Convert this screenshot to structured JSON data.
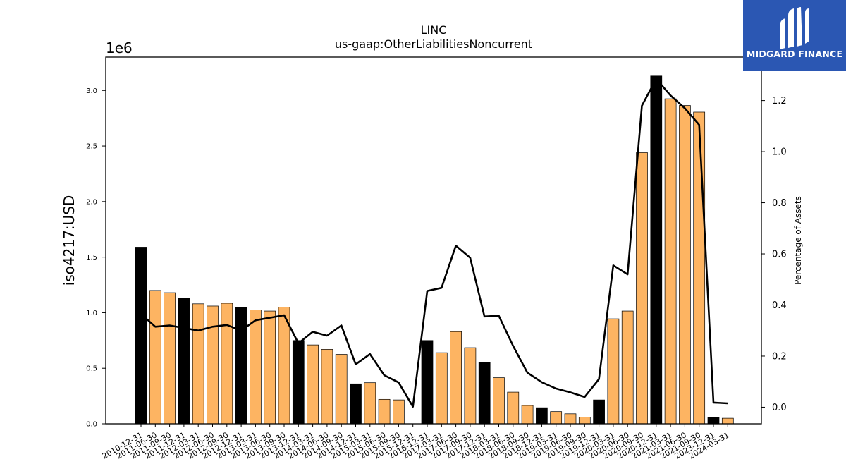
{
  "header": {
    "title": "LINC",
    "subtitle": "us-gaap:OtherLiabilitiesNoncurrent"
  },
  "logo": {
    "text": "MIDGARD FINANCE",
    "background": "#2b57b3"
  },
  "colors": {
    "bar_regular": "#fdb462",
    "bar_highlight": "#000000",
    "line": "#000000"
  },
  "chart_data": {
    "type": "bar",
    "ylabel": "iso4217:USD",
    "y_offset_label": "1e6",
    "y2label": "Percentage of Assets",
    "ylim": [
      0,
      3300000
    ],
    "y2lim": [
      -0.065,
      1.37
    ],
    "yticks": [
      "0.0",
      "0.5",
      "1.0",
      "1.5",
      "2.0",
      "2.5",
      "3.0"
    ],
    "y2ticks": [
      "0.0",
      "0.2",
      "0.4",
      "0.6",
      "0.8",
      "1.0",
      "1.2"
    ],
    "grid": false,
    "categories": [
      "2010-12-31",
      "2011-06-30",
      "2011-09-30",
      "2011-12-31",
      "2012-03-31",
      "2012-06-30",
      "2012-09-30",
      "2012-12-31",
      "2013-03-31",
      "2013-06-30",
      "2013-09-30",
      "2013-12-31",
      "2014-03-31",
      "2014-06-30",
      "2014-09-30",
      "2014-12-31",
      "2015-03-31",
      "2015-06-30",
      "2015-09-30",
      "2015-12-31",
      "2016-12-31",
      "2017-03-31",
      "2017-06-30",
      "2017-09-30",
      "2017-12-31",
      "2018-03-31",
      "2018-06-30",
      "2018-09-30",
      "2018-12-31",
      "2019-03-31",
      "2019-06-30",
      "2019-09-30",
      "2019-12-31",
      "2020-03-31",
      "2020-06-30",
      "2020-09-30",
      "2020-12-31",
      "2021-03-31",
      "2021-06-30",
      "2021-09-30",
      "2023-12-31",
      "2024-03-31"
    ],
    "series": [
      {
        "type": "bar",
        "values": [
          1590000,
          1200000,
          1180000,
          1130000,
          1080000,
          1060000,
          1085000,
          1045000,
          1025000,
          1015000,
          1050000,
          750000,
          710000,
          670000,
          625000,
          360000,
          370000,
          220000,
          215000,
          0,
          750000,
          640000,
          830000,
          685000,
          550000,
          415000,
          285000,
          165000,
          145000,
          110000,
          90000,
          60000,
          215000,
          945000,
          1015000,
          2440000,
          3130000,
          2925000,
          2865000,
          2805000,
          55000,
          50000
        ],
        "highlight": [
          true,
          false,
          false,
          true,
          false,
          false,
          false,
          true,
          false,
          false,
          false,
          true,
          false,
          false,
          false,
          true,
          false,
          false,
          false,
          false,
          true,
          false,
          false,
          false,
          true,
          false,
          false,
          false,
          true,
          false,
          false,
          false,
          true,
          false,
          false,
          false,
          true,
          false,
          false,
          false,
          true,
          false
        ]
      },
      {
        "type": "line",
        "axis": "right",
        "values": [
          0.365,
          0.315,
          0.32,
          0.31,
          0.3,
          0.315,
          0.322,
          0.3,
          0.34,
          0.35,
          0.36,
          0.25,
          0.295,
          0.28,
          0.32,
          0.168,
          0.208,
          0.125,
          0.097,
          0.002,
          0.455,
          0.467,
          0.632,
          0.585,
          0.355,
          0.358,
          0.24,
          0.135,
          0.098,
          0.073,
          0.058,
          0.04,
          0.11,
          0.555,
          0.52,
          1.18,
          1.285,
          1.22,
          1.17,
          1.105,
          0.018,
          0.015
        ]
      }
    ]
  }
}
